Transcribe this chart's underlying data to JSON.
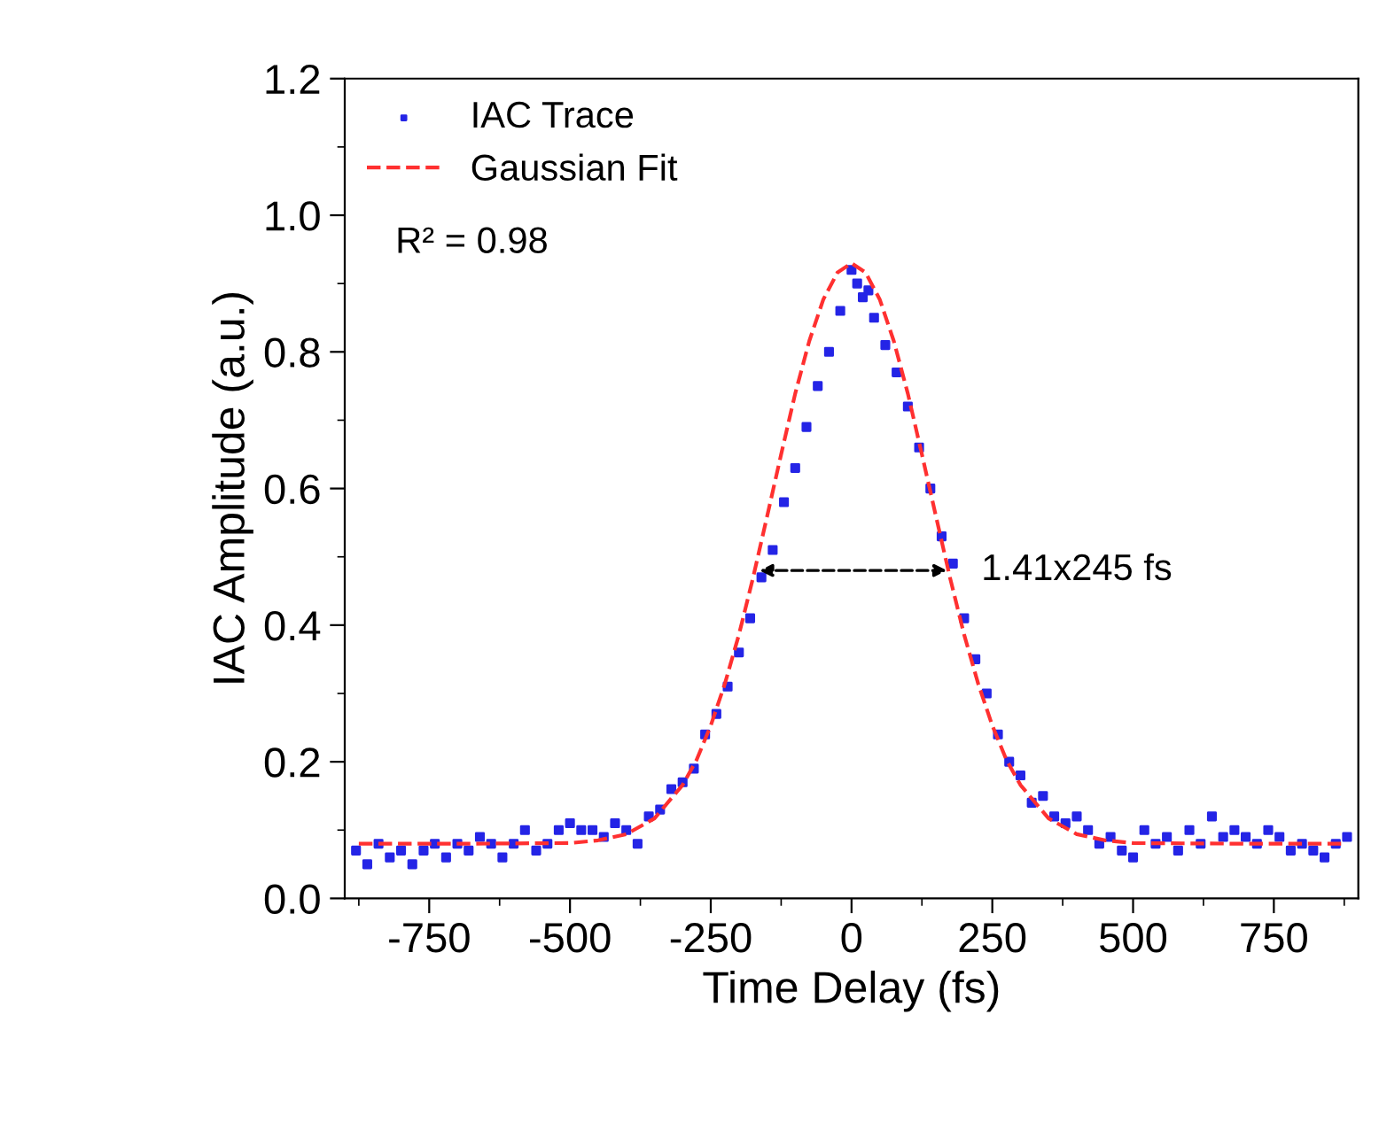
{
  "chart_data": {
    "type": "scatter",
    "xlabel": "Time Delay (fs)",
    "ylabel": "IAC Amplitude (a.u.)",
    "xlim": [
      -900,
      900
    ],
    "ylim": [
      0,
      1.2
    ],
    "xticks": [
      -750,
      -500,
      -250,
      0,
      250,
      500,
      750
    ],
    "yticks": [
      {
        "value": 0,
        "label": "0.0"
      },
      0.2,
      0.4,
      0.6,
      0.8,
      {
        "value": 1,
        "label": "1.0"
      },
      1.2
    ],
    "legend": "top left",
    "grid": false,
    "series": [
      {
        "name": "IAC Trace",
        "marker": "square",
        "color": "#2424e6",
        "x": [
          -880,
          -860,
          -840,
          -820,
          -800,
          -780,
          -760,
          -740,
          -720,
          -700,
          -680,
          -660,
          -640,
          -620,
          -600,
          -580,
          -560,
          -540,
          -520,
          -500,
          -480,
          -460,
          -440,
          -420,
          -400,
          -380,
          -360,
          -340,
          -320,
          -300,
          -280,
          -260,
          -240,
          -220,
          -200,
          -180,
          -160,
          -140,
          -120,
          -100,
          -80,
          -60,
          -40,
          -20,
          0,
          10,
          20,
          30,
          40,
          60,
          80,
          100,
          120,
          140,
          160,
          180,
          200,
          220,
          240,
          260,
          280,
          300,
          320,
          340,
          360,
          380,
          400,
          420,
          440,
          460,
          480,
          500,
          520,
          540,
          560,
          580,
          600,
          620,
          640,
          660,
          680,
          700,
          720,
          740,
          760,
          780,
          800,
          820,
          840,
          860,
          880
        ],
        "values": [
          0.07,
          0.05,
          0.08,
          0.06,
          0.07,
          0.05,
          0.07,
          0.08,
          0.06,
          0.08,
          0.07,
          0.09,
          0.08,
          0.06,
          0.08,
          0.1,
          0.07,
          0.08,
          0.1,
          0.11,
          0.1,
          0.1,
          0.09,
          0.11,
          0.1,
          0.08,
          0.12,
          0.13,
          0.16,
          0.17,
          0.19,
          0.24,
          0.27,
          0.31,
          0.36,
          0.41,
          0.47,
          0.51,
          0.58,
          0.63,
          0.69,
          0.75,
          0.8,
          0.86,
          0.92,
          0.9,
          0.88,
          0.89,
          0.85,
          0.81,
          0.77,
          0.72,
          0.66,
          0.6,
          0.53,
          0.49,
          0.41,
          0.35,
          0.3,
          0.24,
          0.2,
          0.18,
          0.14,
          0.15,
          0.12,
          0.11,
          0.12,
          0.1,
          0.08,
          0.09,
          0.07,
          0.06,
          0.1,
          0.08,
          0.09,
          0.07,
          0.1,
          0.08,
          0.12,
          0.09,
          0.1,
          0.09,
          0.08,
          0.1,
          0.09,
          0.07,
          0.08,
          0.07,
          0.06,
          0.08,
          0.09
        ]
      },
      {
        "name": "Gaussian Fit",
        "type": "line",
        "color": "#ff3030",
        "line_style": "dashed",
        "x": [
          -875,
          -700,
          -500,
          -450,
          -400,
          -350,
          -300,
          -275,
          -250,
          -225,
          -200,
          -175,
          -150,
          -125,
          -100,
          -75,
          -50,
          -25,
          0,
          25,
          50,
          75,
          100,
          125,
          150,
          175,
          200,
          225,
          250,
          275,
          300,
          350,
          400,
          450,
          500,
          700,
          875
        ],
        "values": [
          0.08,
          0.08,
          0.081,
          0.085,
          0.094,
          0.117,
          0.166,
          0.203,
          0.253,
          0.314,
          0.386,
          0.469,
          0.559,
          0.65,
          0.739,
          0.816,
          0.877,
          0.916,
          0.93,
          0.916,
          0.877,
          0.816,
          0.739,
          0.65,
          0.559,
          0.469,
          0.386,
          0.314,
          0.253,
          0.203,
          0.166,
          0.117,
          0.094,
          0.085,
          0.081,
          0.08,
          0.08
        ]
      }
    ],
    "annotations": [
      "R² = 0.98",
      {
        "text": "1.41x245 fs",
        "x": 178,
        "y": 0.48
      }
    ]
  }
}
